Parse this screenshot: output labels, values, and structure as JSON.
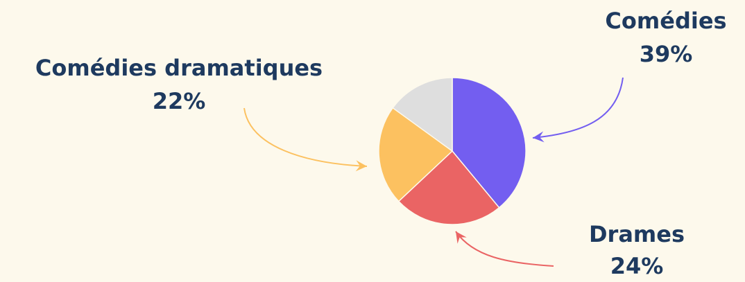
{
  "chart_data": {
    "type": "pie",
    "categories": [
      "Comédies",
      "Drames",
      "Comédies dramatiques",
      null
    ],
    "values": [
      39,
      24,
      22,
      15
    ],
    "value_labels": [
      "39%",
      "24%",
      "22%",
      null
    ],
    "colors": [
      "#735ef0",
      "#ea6464",
      "#fcc160",
      "#dedede"
    ]
  }
}
